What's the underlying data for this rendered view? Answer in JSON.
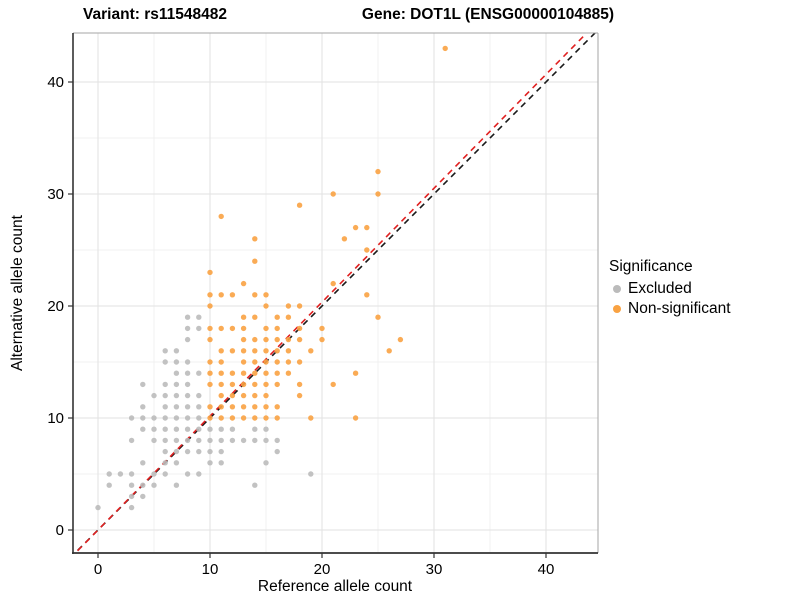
{
  "titles": {
    "variant": "Variant: rs11548482",
    "gene": "Gene: DOT1L (ENSG00000104885)"
  },
  "legend": {
    "title": "Significance",
    "items": [
      {
        "label": "Excluded",
        "color": "#BBBBBB"
      },
      {
        "label": "Non-significant",
        "color": "#F9A242"
      }
    ]
  },
  "colors": {
    "excluded": "#BBBBBB",
    "non_significant": "#F9A242",
    "identity_line": "#1A1A1A",
    "fit_line": "#E02020",
    "grid_major": "#E2E2E2",
    "grid_minor": "#F0F0F0",
    "axis": "#333333",
    "panel_border": "#A6A6A6"
  },
  "chart_data": {
    "type": "scatter",
    "title_left": "Variant: rs11548482",
    "title_right": "Gene: DOT1L (ENSG00000104885)",
    "xlabel": "Reference allele count",
    "ylabel": "Alternative allele count",
    "xlim": [
      -2.2,
      44.6
    ],
    "ylim": [
      -2.1,
      44.4
    ],
    "x_ticks": [
      0,
      10,
      20,
      30,
      40
    ],
    "y_ticks": [
      0,
      10,
      20,
      30,
      40
    ],
    "minor_ticks": [
      5,
      15,
      25,
      35
    ],
    "grid": "on",
    "legend_position": "right",
    "series": [
      {
        "name": "Excluded",
        "color": "#BBBBBB",
        "points": [
          [
            0,
            2
          ],
          [
            3,
            2
          ],
          [
            3,
            3
          ],
          [
            4,
            3
          ],
          [
            1,
            4
          ],
          [
            3,
            4
          ],
          [
            4,
            4
          ],
          [
            5,
            4
          ],
          [
            7,
            4
          ],
          [
            14,
            4
          ],
          [
            1,
            5
          ],
          [
            2,
            5
          ],
          [
            3,
            5
          ],
          [
            5,
            5
          ],
          [
            6,
            5
          ],
          [
            8,
            5
          ],
          [
            9,
            5
          ],
          [
            19,
            5
          ],
          [
            4,
            6
          ],
          [
            6,
            6
          ],
          [
            7,
            6
          ],
          [
            10,
            6
          ],
          [
            11,
            6
          ],
          [
            15,
            6
          ],
          [
            6,
            7
          ],
          [
            7,
            7
          ],
          [
            8,
            7
          ],
          [
            9,
            7
          ],
          [
            10,
            7
          ],
          [
            11,
            7
          ],
          [
            16,
            7
          ],
          [
            3,
            8
          ],
          [
            5,
            8
          ],
          [
            6,
            8
          ],
          [
            7,
            8
          ],
          [
            8,
            8
          ],
          [
            9,
            8
          ],
          [
            10,
            8
          ],
          [
            11,
            8
          ],
          [
            12,
            8
          ],
          [
            13,
            8
          ],
          [
            14,
            8
          ],
          [
            15,
            8
          ],
          [
            16,
            8
          ],
          [
            4,
            9
          ],
          [
            5,
            9
          ],
          [
            6,
            9
          ],
          [
            7,
            9
          ],
          [
            8,
            9
          ],
          [
            9,
            9
          ],
          [
            10,
            9
          ],
          [
            11,
            9
          ],
          [
            12,
            9
          ],
          [
            14,
            9
          ],
          [
            15,
            9
          ],
          [
            3,
            10
          ],
          [
            4,
            10
          ],
          [
            5,
            10
          ],
          [
            6,
            10
          ],
          [
            7,
            10
          ],
          [
            8,
            10
          ],
          [
            9,
            10
          ],
          [
            4,
            11
          ],
          [
            6,
            11
          ],
          [
            7,
            11
          ],
          [
            8,
            11
          ],
          [
            9,
            11
          ],
          [
            5,
            12
          ],
          [
            6,
            12
          ],
          [
            7,
            12
          ],
          [
            8,
            12
          ],
          [
            9,
            12
          ],
          [
            4,
            13
          ],
          [
            6,
            13
          ],
          [
            7,
            13
          ],
          [
            8,
            13
          ],
          [
            7,
            14
          ],
          [
            8,
            14
          ],
          [
            9,
            14
          ],
          [
            6,
            15
          ],
          [
            7,
            15
          ],
          [
            8,
            15
          ],
          [
            6,
            16
          ],
          [
            7,
            16
          ],
          [
            8,
            17
          ],
          [
            8,
            18
          ],
          [
            9,
            18
          ],
          [
            8,
            19
          ],
          [
            9,
            19
          ]
        ]
      },
      {
        "name": "Non-significant",
        "color": "#F9A242",
        "points": [
          [
            10,
            10
          ],
          [
            11,
            10
          ],
          [
            12,
            10
          ],
          [
            13,
            10
          ],
          [
            14,
            10
          ],
          [
            15,
            10
          ],
          [
            16,
            10
          ],
          [
            19,
            10
          ],
          [
            23,
            10
          ],
          [
            10,
            11
          ],
          [
            11,
            11
          ],
          [
            12,
            11
          ],
          [
            13,
            11
          ],
          [
            14,
            11
          ],
          [
            15,
            11
          ],
          [
            16,
            11
          ],
          [
            11,
            12
          ],
          [
            12,
            12
          ],
          [
            13,
            12
          ],
          [
            14,
            12
          ],
          [
            15,
            12
          ],
          [
            18,
            12
          ],
          [
            10,
            13
          ],
          [
            11,
            13
          ],
          [
            12,
            13
          ],
          [
            13,
            13
          ],
          [
            14,
            13
          ],
          [
            15,
            13
          ],
          [
            16,
            13
          ],
          [
            18,
            13
          ],
          [
            21,
            13
          ],
          [
            10,
            14
          ],
          [
            11,
            14
          ],
          [
            12,
            14
          ],
          [
            13,
            14
          ],
          [
            14,
            14
          ],
          [
            15,
            14
          ],
          [
            16,
            14
          ],
          [
            17,
            14
          ],
          [
            23,
            14
          ],
          [
            10,
            15
          ],
          [
            11,
            15
          ],
          [
            13,
            15
          ],
          [
            14,
            15
          ],
          [
            15,
            15
          ],
          [
            16,
            15
          ],
          [
            17,
            15
          ],
          [
            18,
            15
          ],
          [
            11,
            16
          ],
          [
            12,
            16
          ],
          [
            13,
            16
          ],
          [
            14,
            16
          ],
          [
            15,
            16
          ],
          [
            16,
            16
          ],
          [
            17,
            16
          ],
          [
            19,
            16
          ],
          [
            26,
            16
          ],
          [
            10,
            17
          ],
          [
            13,
            17
          ],
          [
            14,
            17
          ],
          [
            15,
            17
          ],
          [
            16,
            17
          ],
          [
            17,
            17
          ],
          [
            18,
            17
          ],
          [
            20,
            17
          ],
          [
            27,
            17
          ],
          [
            10,
            18
          ],
          [
            11,
            18
          ],
          [
            12,
            18
          ],
          [
            13,
            18
          ],
          [
            15,
            18
          ],
          [
            16,
            18
          ],
          [
            18,
            18
          ],
          [
            20,
            18
          ],
          [
            13,
            19
          ],
          [
            14,
            19
          ],
          [
            16,
            19
          ],
          [
            17,
            19
          ],
          [
            25,
            19
          ],
          [
            10,
            20
          ],
          [
            15,
            20
          ],
          [
            17,
            20
          ],
          [
            18,
            20
          ],
          [
            10,
            21
          ],
          [
            11,
            21
          ],
          [
            12,
            21
          ],
          [
            14,
            21
          ],
          [
            15,
            21
          ],
          [
            24,
            21
          ],
          [
            13,
            22
          ],
          [
            21,
            22
          ],
          [
            10,
            23
          ],
          [
            14,
            24
          ],
          [
            24,
            25
          ],
          [
            14,
            26
          ],
          [
            22,
            26
          ],
          [
            23,
            27
          ],
          [
            24,
            27
          ],
          [
            11,
            28
          ],
          [
            18,
            29
          ],
          [
            21,
            30
          ],
          [
            25,
            30
          ],
          [
            25,
            32
          ],
          [
            31,
            43
          ]
        ]
      }
    ],
    "lines": [
      {
        "name": "identity-line",
        "style": "dashed",
        "color": "#1A1A1A",
        "slope": 1.0,
        "intercept": 0
      },
      {
        "name": "fit-line",
        "style": "dashed",
        "color": "#E02020",
        "slope": 1.017,
        "intercept": 0
      }
    ]
  }
}
